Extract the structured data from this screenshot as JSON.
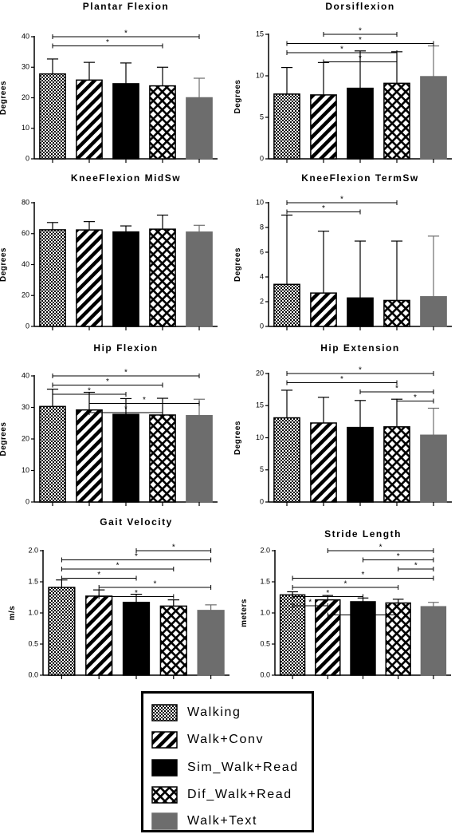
{
  "groups": [
    "Walking",
    "Walk+Conv",
    "Sim_Walk+Read",
    "Dif_Walk+Read",
    "Walk+Text"
  ],
  "colors": {
    "sim_read": "#000000",
    "text": "#6d6d6d",
    "axis": "#000000"
  },
  "significance_marker": "*",
  "legend": {
    "entries": [
      {
        "label": "Walking",
        "pattern": "checker"
      },
      {
        "label": "Walk+Conv",
        "pattern": "diagonal-stripes"
      },
      {
        "label": "Sim_Walk+Read",
        "pattern": "solid-black"
      },
      {
        "label": "Dif_Walk+Read",
        "pattern": "crosshatch"
      },
      {
        "label": "Walk+Text",
        "pattern": "solid-gray"
      }
    ]
  },
  "chart_data": [
    {
      "type": "bar",
      "title": "Plantar Flexion",
      "ylabel": "Degrees",
      "categories": [
        "Walking",
        "Walk+Conv",
        "Sim_Walk+Read",
        "Dif_Walk+Read",
        "Walk+Text"
      ],
      "values": [
        27.8,
        25.8,
        24.6,
        23.9,
        20.0
      ],
      "errors": [
        4.9,
        5.8,
        6.8,
        6.1,
        6.4
      ],
      "ylim": [
        0,
        40
      ],
      "yticks": [
        0,
        10,
        20,
        30,
        40
      ],
      "significance": [
        [
          0,
          4
        ],
        [
          0,
          3
        ]
      ]
    },
    {
      "type": "bar",
      "title": "Dorsiflexion",
      "ylabel": "Degrees",
      "categories": [
        "Walking",
        "Walk+Conv",
        "Sim_Walk+Read",
        "Dif_Walk+Read",
        "Walk+Text"
      ],
      "values": [
        7.8,
        7.7,
        8.5,
        9.1,
        9.9
      ],
      "errors": [
        3.2,
        3.9,
        4.5,
        3.8,
        3.7
      ],
      "ylim": [
        0,
        15
      ],
      "yticks": [
        0,
        5,
        10,
        15
      ],
      "significance": [
        [
          1,
          3
        ],
        [
          0,
          4
        ],
        [
          0,
          3
        ],
        [
          1,
          3
        ]
      ]
    },
    {
      "type": "bar",
      "title": "KneeFlexion MidSw",
      "ylabel": "Degrees",
      "categories": [
        "Walking",
        "Walk+Conv",
        "Sim_Walk+Read",
        "Dif_Walk+Read",
        "Walk+Text"
      ],
      "values": [
        62.5,
        62.4,
        61.1,
        62.9,
        61.0
      ],
      "errors": [
        4.7,
        5.4,
        3.9,
        9.1,
        4.4
      ],
      "ylim": [
        0,
        80
      ],
      "yticks": [
        0,
        20,
        40,
        60,
        80
      ],
      "significance": []
    },
    {
      "type": "bar",
      "title": "KneeFlexion TermSw",
      "ylabel": "Degrees",
      "categories": [
        "Walking",
        "Walk+Conv",
        "Sim_Walk+Read",
        "Dif_Walk+Read",
        "Walk+Text"
      ],
      "values": [
        3.4,
        2.7,
        2.3,
        2.1,
        2.4
      ],
      "errors": [
        5.6,
        5.0,
        4.6,
        4.8,
        4.9
      ],
      "ylim": [
        0,
        10
      ],
      "yticks": [
        0,
        2,
        4,
        6,
        8,
        10
      ],
      "significance": [
        [
          0,
          3
        ],
        [
          0,
          2
        ]
      ]
    },
    {
      "type": "bar",
      "title": "Hip Flexion",
      "ylabel": "Degrees",
      "categories": [
        "Walking",
        "Walk+Conv",
        "Sim_Walk+Read",
        "Dif_Walk+Read",
        "Walk+Text"
      ],
      "values": [
        30.3,
        29.2,
        27.8,
        27.6,
        27.4
      ],
      "errors": [
        5.5,
        5.6,
        5.0,
        5.3,
        5.2
      ],
      "ylim": [
        0,
        40
      ],
      "yticks": [
        0,
        10,
        20,
        30,
        40
      ],
      "significance": [
        [
          0,
          4
        ],
        [
          0,
          3
        ],
        [
          0,
          2
        ],
        [
          1,
          4
        ],
        [
          1,
          3
        ]
      ]
    },
    {
      "type": "bar",
      "title": "Hip Extension",
      "ylabel": "Degrees",
      "categories": [
        "Walking",
        "Walk+Conv",
        "Sim_Walk+Read",
        "Dif_Walk+Read",
        "Walk+Text"
      ],
      "values": [
        13.1,
        12.3,
        11.6,
        11.7,
        10.4
      ],
      "errors": [
        4.3,
        4.0,
        4.2,
        4.3,
        4.2
      ],
      "ylim": [
        0,
        20
      ],
      "yticks": [
        0,
        5,
        10,
        15,
        20
      ],
      "significance": [
        [
          0,
          4
        ],
        [
          0,
          3
        ],
        [
          2,
          4
        ],
        [
          3,
          4
        ]
      ]
    },
    {
      "type": "bar",
      "title": "Gait Velocity",
      "ylabel": "m/s",
      "categories": [
        "Walking",
        "Walk+Conv",
        "Sim_Walk+Read",
        "Dif_Walk+Read",
        "Walk+Text"
      ],
      "values": [
        1.41,
        1.27,
        1.17,
        1.11,
        1.04
      ],
      "errors": [
        0.12,
        0.1,
        0.13,
        0.1,
        0.09
      ],
      "ylim": [
        0,
        2.0
      ],
      "yticks": [
        0.0,
        0.5,
        1.0,
        1.5,
        2.0
      ],
      "significance": [
        [
          2,
          4
        ],
        [
          0,
          4
        ],
        [
          0,
          3
        ],
        [
          0,
          2
        ],
        [
          1,
          4
        ],
        [
          1,
          3
        ]
      ]
    },
    {
      "type": "bar",
      "title": "Stride Length",
      "ylabel": "meters",
      "categories": [
        "Walking",
        "Walk+Conv",
        "Sim_Walk+Read",
        "Dif_Walk+Read",
        "Walk+Text"
      ],
      "values": [
        1.29,
        1.21,
        1.18,
        1.16,
        1.1
      ],
      "errors": [
        0.05,
        0.07,
        0.06,
        0.06,
        0.07
      ],
      "ylim": [
        0,
        2.0
      ],
      "yticks": [
        0.0,
        0.5,
        1.0,
        1.5,
        2.0
      ],
      "significance": [
        [
          1,
          4
        ],
        [
          2,
          4
        ],
        [
          3,
          4
        ],
        [
          0,
          4
        ],
        [
          0,
          3
        ],
        [
          0,
          2
        ],
        [
          0,
          1
        ],
        [
          1,
          3
        ]
      ]
    }
  ]
}
